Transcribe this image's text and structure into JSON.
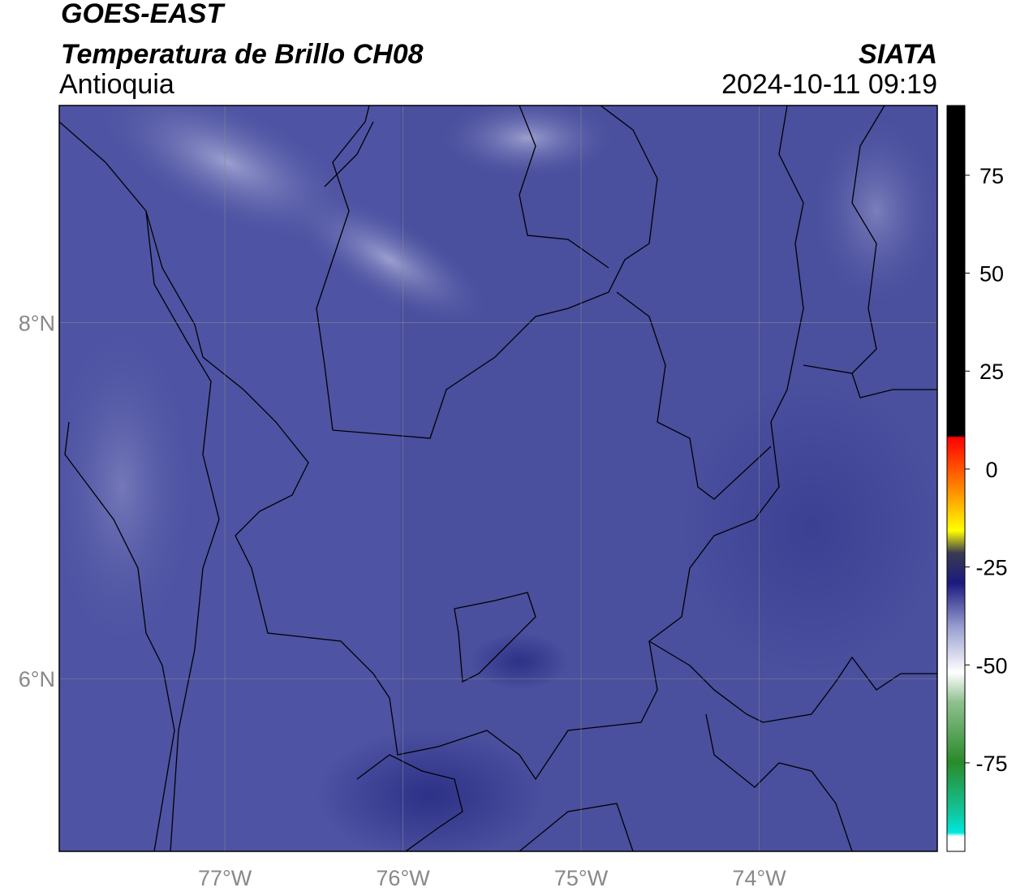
{
  "header": {
    "title": "GOES-EAST",
    "subtitle": "Temperatura de Brillo CH08",
    "region": "Antioquia",
    "source": "SIATA",
    "datetime": "2024-10-11 09:19"
  },
  "map": {
    "xlim": [
      -77.93,
      -73.0
    ],
    "ylim": [
      5.03,
      9.22
    ],
    "xticks": [
      {
        "value": -77,
        "label": "77°W"
      },
      {
        "value": -76,
        "label": "76°W"
      },
      {
        "value": -75,
        "label": "75°W"
      },
      {
        "value": -74,
        "label": "74°W"
      }
    ],
    "yticks": [
      {
        "value": 8,
        "label": "8°N"
      },
      {
        "value": 6,
        "label": "6°N"
      }
    ]
  },
  "colorbar": {
    "lim": [
      -97.6,
      92.8
    ],
    "ticks": [
      -75,
      -50,
      -25,
      0,
      25,
      50,
      75
    ]
  }
}
